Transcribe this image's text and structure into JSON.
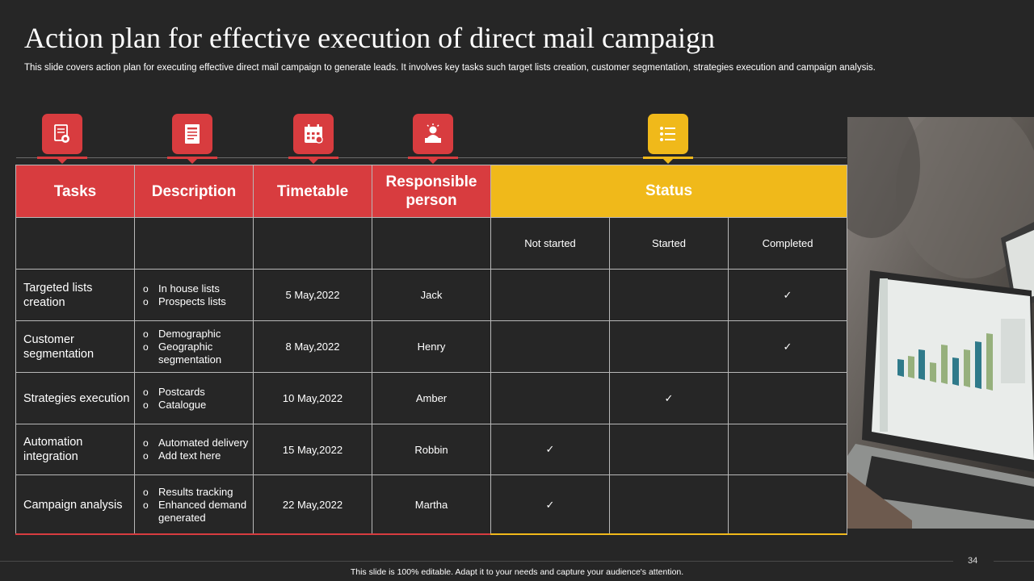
{
  "slide": {
    "title": "Action plan for effective execution of direct mail campaign",
    "subtitle": "This slide covers action plan for executing effective  direct mail campaign to generate leads. It involves key tasks such target lists creation, customer segmentation, strategies execution and campaign analysis.",
    "page_number": "34",
    "footer_note": "This slide is 100% editable.  Adapt it to your needs and capture your audience's attention."
  },
  "icons": [
    "document-stamp-icon",
    "description-icon",
    "calendar-icon",
    "person-desk-icon",
    "checklist-icon"
  ],
  "colors": {
    "accent_red": "#d83c3f",
    "accent_yellow": "#f0b91a",
    "background": "#262626"
  },
  "table": {
    "headers": {
      "tasks": "Tasks",
      "description": "Description",
      "timetable": "Timetable",
      "responsible": "Responsible person",
      "status": "Status"
    },
    "status_columns": [
      "Not started",
      "Started",
      "Completed"
    ],
    "rows": [
      {
        "task": "Targeted lists creation",
        "description": [
          "In house lists",
          "Prospects lists"
        ],
        "date": "5 May,2022",
        "person": "Jack",
        "status": [
          "",
          "",
          "✓"
        ]
      },
      {
        "task": "Customer segmentation",
        "description": [
          "Demographic",
          "Geographic segmentation"
        ],
        "date": "8 May,2022",
        "person": "Henry",
        "status": [
          "",
          "",
          "✓"
        ]
      },
      {
        "task": "Strategies execution",
        "description": [
          "Postcards",
          "Catalogue"
        ],
        "date": "10 May,2022",
        "person": "Amber",
        "status": [
          "",
          "✓",
          ""
        ]
      },
      {
        "task": "Automation integration",
        "description": [
          "Automated delivery",
          "Add text here"
        ],
        "date": "15 May,2022",
        "person": "Robbin",
        "status": [
          "✓",
          "",
          ""
        ]
      },
      {
        "task": "Campaign analysis",
        "description": [
          "Results tracking",
          "Enhanced demand generated"
        ],
        "date": "22 May,2022",
        "person": "Martha",
        "status": [
          "✓",
          "",
          ""
        ]
      }
    ]
  }
}
